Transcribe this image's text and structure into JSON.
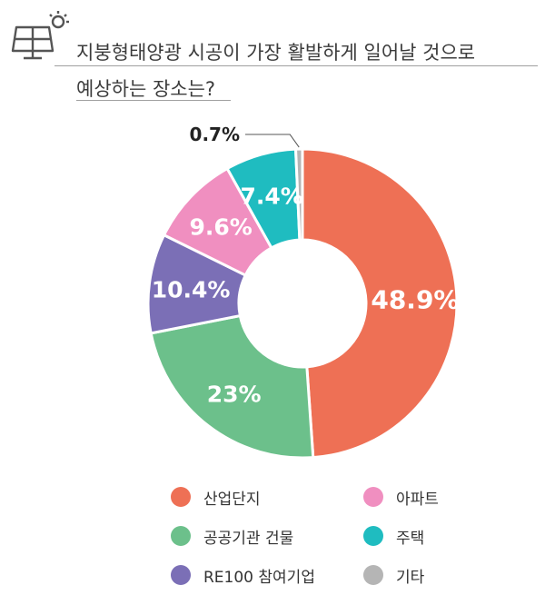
{
  "title": "지붕형태양광 시공이 가장 활발하게 일어날 것으로 예상하는 장소는?",
  "title_lines": [
    "지붕형태양광 시공이 가장 활발하게 일어날 것으로",
    "예상하는 장소는?"
  ],
  "icon": "solar-panel-icon",
  "chart_data": {
    "type": "pie",
    "donut": true,
    "unit": "%",
    "labels": [
      "산업단지",
      "공공기관 건물",
      "RE100 참여기업",
      "아파트",
      "주택",
      "기타"
    ],
    "values": [
      48.9,
      23,
      10.4,
      9.6,
      7.4,
      0.7
    ],
    "value_labels": [
      "48.9%",
      "23%",
      "10.4%",
      "9.6%",
      "7.4%",
      "0.7%"
    ],
    "colors": [
      "#ee7055",
      "#6cc08b",
      "#7b6fb6",
      "#f08fc0",
      "#1fbcc0",
      "#b5b5b5"
    ],
    "legend_placement": "bottom"
  },
  "legend": [
    {
      "label": "산업단지",
      "color": "#ee7055"
    },
    {
      "label": "아파트",
      "color": "#f08fc0"
    },
    {
      "label": "공공기관 건물",
      "color": "#6cc08b"
    },
    {
      "label": "주택",
      "color": "#1fbcc0"
    },
    {
      "label": "RE100 참여기업",
      "color": "#7b6fb6"
    },
    {
      "label": "기타",
      "color": "#b5b5b5"
    }
  ]
}
